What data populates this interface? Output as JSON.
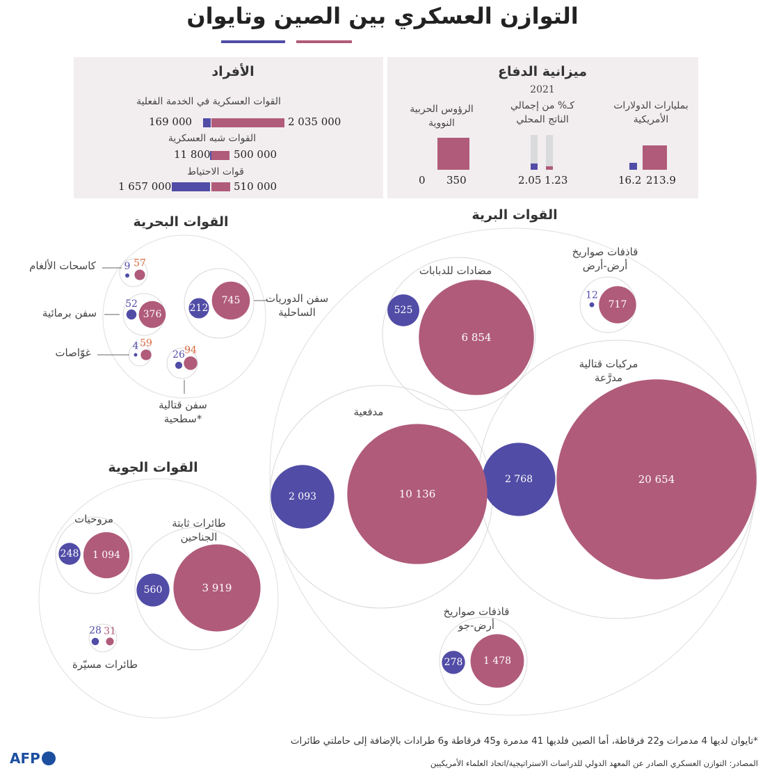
{
  "title": "التوازن العسكري بين الصين وتايوان",
  "colors": {
    "china": "#b05b7a",
    "taiwan": "#514ca6",
    "navy_small_china": "#d9683f",
    "panel_bg": "#f2eeef"
  },
  "personnel": {
    "title": "الأفراد",
    "rows": [
      {
        "label": "القوات العسكرية في الخدمة الفعلية",
        "china_text": "2 035 000",
        "taiwan_text": "169 000",
        "china": 2035000,
        "taiwan": 169000
      },
      {
        "label": "القوات شبه العسكرية",
        "china_text": "500 000",
        "taiwan_text": "11 800",
        "china": 500000,
        "taiwan": 11800
      },
      {
        "label": "قوات الاحتياط",
        "china_text": "510 000",
        "taiwan_text": "1 657 000",
        "china": 510000,
        "taiwan": 1657000
      }
    ]
  },
  "budget": {
    "title": "ميزانية الدفاع",
    "year": "2021",
    "usd_label": "بمليارات الدولارات الأمريكية",
    "usd_china_text": "213.9",
    "usd_taiwan_text": "16.2",
    "gdp_label": "كـ% من إجمالي الناتج المحلي",
    "gdp_china_text": "1.23",
    "gdp_taiwan_text": "2.05",
    "nukes_label": "الرؤوس الحربية النووية",
    "nukes_china_text": "350",
    "nukes_taiwan_text": "0"
  },
  "sections": {
    "land": "القوات البرية",
    "navy": "القوات البحرية",
    "air": "القوات الجوية"
  },
  "chart_data": {
    "type": "bubble",
    "units": "count",
    "series": [
      "China",
      "Taiwan"
    ],
    "groups": [
      {
        "section": "land",
        "items": [
          {
            "label": "قاذفات صواريخ أرض-أرض",
            "china": 717,
            "taiwan": 12,
            "china_text": "717",
            "taiwan_text": "12"
          },
          {
            "label": "مضادات للدبابات",
            "china": 6854,
            "taiwan": 525,
            "china_text": "6 854",
            "taiwan_text": "525"
          },
          {
            "label": "مركبات قتالية مدرَّعة",
            "china": 20654,
            "taiwan": 2768,
            "china_text": "20 654",
            "taiwan_text": "2 768"
          },
          {
            "label": "مدفعية",
            "china": 10136,
            "taiwan": 2093,
            "china_text": "10 136",
            "taiwan_text": "2 093"
          },
          {
            "label": "قاذفات صواريخ أرض-جو",
            "china": 1478,
            "taiwan": 278,
            "china_text": "1 478",
            "taiwan_text": "278"
          }
        ]
      },
      {
        "section": "navy",
        "items": [
          {
            "label": "كاسحات الألغام",
            "china": 57,
            "taiwan": 9,
            "china_text": "57",
            "taiwan_text": "9"
          },
          {
            "label": "سفن برمائية",
            "china": 376,
            "taiwan": 52,
            "china_text": "376",
            "taiwan_text": "52"
          },
          {
            "label": "غوّاصات",
            "china": 59,
            "taiwan": 4,
            "china_text": "59",
            "taiwan_text": "4"
          },
          {
            "label": "سفن الدوريات الساحلية",
            "china": 745,
            "taiwan": 212,
            "china_text": "745",
            "taiwan_text": "212"
          },
          {
            "label": "سفن قتالية سطحية*",
            "china": 94,
            "taiwan": 26,
            "china_text": "94",
            "taiwan_text": "26"
          }
        ]
      },
      {
        "section": "air",
        "items": [
          {
            "label": "مروحيات",
            "china": 1094,
            "taiwan": 248,
            "china_text": "1 094",
            "taiwan_text": "248"
          },
          {
            "label": "طائرات ثابتة الجناحين",
            "china": 3919,
            "taiwan": 560,
            "china_text": "3 919",
            "taiwan_text": "560"
          },
          {
            "label": "طائرات مسيّرة",
            "china": 31,
            "taiwan": 28,
            "china_text": "31",
            "taiwan_text": "28"
          }
        ]
      }
    ]
  },
  "footnote": "*تايوان لديها 4 مدمرات و22 فرقاطة، أما الصين فلديها 41 مدمرة و45 فرقاطة و6 طرادات بالإضافة إلى حاملتي طائرات",
  "sources": "المصادر: التوازن العسكري الصادر عن المعهد الدولي للدراسات الاستراتيجية/اتحاد العلماء الأمريكيين",
  "logo": "AFP"
}
